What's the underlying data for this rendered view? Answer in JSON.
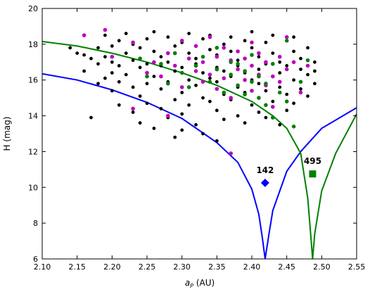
{
  "chart_data": {
    "type": "scatter",
    "xlabel": "a",
    "xlabel_sub": "P",
    "xlabel_unit": " (AU)",
    "ylabel": "H (mag)",
    "xlim": [
      2.1,
      2.55
    ],
    "ylim": [
      6,
      20
    ],
    "x_ticks": [
      "2.10",
      "2.15",
      "2.20",
      "2.25",
      "2.30",
      "2.35",
      "2.40",
      "2.45",
      "2.50",
      "2.55"
    ],
    "y_ticks": [
      "6",
      "8",
      "10",
      "12",
      "14",
      "16",
      "18",
      "20"
    ],
    "grid": false,
    "legend": "none",
    "colors": {
      "black_points": "#000000",
      "magenta_points": "#bf00bf",
      "green_points": "#008000",
      "blue_curve": "#0000ff",
      "green_curve": "#008000"
    },
    "curves": [
      {
        "color": "blue",
        "center": 2.419,
        "points": [
          [
            2.1,
            16.35
          ],
          [
            2.15,
            16.0
          ],
          [
            2.2,
            15.45
          ],
          [
            2.25,
            14.75
          ],
          [
            2.3,
            13.85
          ],
          [
            2.35,
            12.5
          ],
          [
            2.38,
            11.4
          ],
          [
            2.4,
            9.9
          ],
          [
            2.41,
            8.5
          ],
          [
            2.415,
            7.2
          ],
          [
            2.419,
            6.0
          ],
          [
            2.425,
            7.5
          ],
          [
            2.43,
            8.7
          ],
          [
            2.45,
            10.9
          ],
          [
            2.47,
            12.0
          ],
          [
            2.5,
            13.3
          ],
          [
            2.55,
            14.45
          ]
        ]
      },
      {
        "color": "green",
        "center": 2.487,
        "points": [
          [
            2.1,
            18.15
          ],
          [
            2.15,
            17.9
          ],
          [
            2.2,
            17.5
          ],
          [
            2.25,
            17.0
          ],
          [
            2.3,
            16.4
          ],
          [
            2.35,
            15.7
          ],
          [
            2.4,
            14.8
          ],
          [
            2.43,
            14.0
          ],
          [
            2.45,
            13.3
          ],
          [
            2.47,
            11.9
          ],
          [
            2.48,
            9.4
          ],
          [
            2.484,
            7.5
          ],
          [
            2.487,
            6.0
          ],
          [
            2.49,
            7.4
          ],
          [
            2.5,
            9.8
          ],
          [
            2.52,
            11.9
          ],
          [
            2.55,
            14.1
          ]
        ]
      }
    ],
    "markers": [
      {
        "label": "142",
        "shape": "diamond",
        "color": "blue",
        "x": 2.419,
        "y": 10.25
      },
      {
        "label": "495",
        "shape": "square",
        "color": "green",
        "x": 2.487,
        "y": 10.75
      }
    ],
    "series": [
      {
        "color": "black",
        "points": [
          [
            2.14,
            17.8
          ],
          [
            2.15,
            17.5
          ],
          [
            2.16,
            17.4
          ],
          [
            2.16,
            16.5
          ],
          [
            2.17,
            17.2
          ],
          [
            2.17,
            13.9
          ],
          [
            2.18,
            17.8
          ],
          [
            2.18,
            16.9
          ],
          [
            2.18,
            15.8
          ],
          [
            2.19,
            17.3
          ],
          [
            2.19,
            16.1
          ],
          [
            2.19,
            18.5
          ],
          [
            2.2,
            17.0
          ],
          [
            2.2,
            16.4
          ],
          [
            2.2,
            15.4
          ],
          [
            2.2,
            17.9
          ],
          [
            2.21,
            18.2
          ],
          [
            2.21,
            16.8
          ],
          [
            2.21,
            15.9
          ],
          [
            2.21,
            14.6
          ],
          [
            2.22,
            17.5
          ],
          [
            2.22,
            16.3
          ],
          [
            2.22,
            18.6
          ],
          [
            2.23,
            17.1
          ],
          [
            2.23,
            15.6
          ],
          [
            2.23,
            14.2
          ],
          [
            2.23,
            18.0
          ],
          [
            2.24,
            16.7
          ],
          [
            2.24,
            17.8
          ],
          [
            2.24,
            15.1
          ],
          [
            2.24,
            13.6
          ],
          [
            2.25,
            18.3
          ],
          [
            2.25,
            16.9
          ],
          [
            2.25,
            15.8
          ],
          [
            2.25,
            14.7
          ],
          [
            2.26,
            17.6
          ],
          [
            2.26,
            16.2
          ],
          [
            2.26,
            13.3
          ],
          [
            2.26,
            18.7
          ],
          [
            2.27,
            17.3
          ],
          [
            2.27,
            15.5
          ],
          [
            2.27,
            14.4
          ],
          [
            2.27,
            16.8
          ],
          [
            2.28,
            18.4
          ],
          [
            2.28,
            17.0
          ],
          [
            2.28,
            15.9
          ],
          [
            2.28,
            13.9
          ],
          [
            2.29,
            16.5
          ],
          [
            2.29,
            17.9
          ],
          [
            2.29,
            14.9
          ],
          [
            2.29,
            12.8
          ],
          [
            2.3,
            18.1
          ],
          [
            2.3,
            16.7
          ],
          [
            2.3,
            15.3
          ],
          [
            2.3,
            14.1
          ],
          [
            2.3,
            13.2
          ],
          [
            2.31,
            17.5
          ],
          [
            2.31,
            16.0
          ],
          [
            2.31,
            18.6
          ],
          [
            2.31,
            14.6
          ],
          [
            2.32,
            17.2
          ],
          [
            2.32,
            15.7
          ],
          [
            2.32,
            13.5
          ],
          [
            2.32,
            16.9
          ],
          [
            2.33,
            18.3
          ],
          [
            2.33,
            16.4
          ],
          [
            2.33,
            15.0
          ],
          [
            2.33,
            13.0
          ],
          [
            2.34,
            17.7
          ],
          [
            2.34,
            16.1
          ],
          [
            2.34,
            14.8
          ],
          [
            2.34,
            18.5
          ],
          [
            2.35,
            17.4
          ],
          [
            2.35,
            15.9
          ],
          [
            2.35,
            14.3
          ],
          [
            2.35,
            16.7
          ],
          [
            2.35,
            12.6
          ],
          [
            2.36,
            18.0
          ],
          [
            2.36,
            16.5
          ],
          [
            2.36,
            15.2
          ],
          [
            2.36,
            13.8
          ],
          [
            2.37,
            17.6
          ],
          [
            2.37,
            16.2
          ],
          [
            2.37,
            14.9
          ],
          [
            2.37,
            18.4
          ],
          [
            2.38,
            17.1
          ],
          [
            2.38,
            15.6
          ],
          [
            2.38,
            14.0
          ],
          [
            2.38,
            16.8
          ],
          [
            2.39,
            18.2
          ],
          [
            2.39,
            16.4
          ],
          [
            2.39,
            15.3
          ],
          [
            2.39,
            13.6
          ],
          [
            2.4,
            17.8
          ],
          [
            2.4,
            16.0
          ],
          [
            2.4,
            14.6
          ],
          [
            2.4,
            18.7
          ],
          [
            2.41,
            17.3
          ],
          [
            2.41,
            15.8
          ],
          [
            2.41,
            14.2
          ],
          [
            2.41,
            16.6
          ],
          [
            2.42,
            18.1
          ],
          [
            2.42,
            16.9
          ],
          [
            2.42,
            15.4
          ],
          [
            2.42,
            13.9
          ],
          [
            2.43,
            17.5
          ],
          [
            2.43,
            16.2
          ],
          [
            2.43,
            14.8
          ],
          [
            2.43,
            18.5
          ],
          [
            2.44,
            17.0
          ],
          [
            2.44,
            15.6
          ],
          [
            2.44,
            13.5
          ],
          [
            2.44,
            16.4
          ],
          [
            2.45,
            18.2
          ],
          [
            2.45,
            16.8
          ],
          [
            2.45,
            15.2
          ],
          [
            2.45,
            14.3
          ],
          [
            2.46,
            17.6
          ],
          [
            2.46,
            16.0
          ],
          [
            2.46,
            14.7
          ],
          [
            2.46,
            18.4
          ],
          [
            2.47,
            17.2
          ],
          [
            2.47,
            15.5
          ],
          [
            2.47,
            16.6
          ],
          [
            2.48,
            17.8
          ],
          [
            2.48,
            16.3
          ],
          [
            2.48,
            15.1
          ],
          [
            2.49,
            17.0
          ],
          [
            2.49,
            16.5
          ],
          [
            2.49,
            15.8
          ]
        ]
      },
      {
        "color": "magenta",
        "points": [
          [
            2.16,
            18.5
          ],
          [
            2.19,
            18.8
          ],
          [
            2.2,
            17.3
          ],
          [
            2.23,
            18.1
          ],
          [
            2.23,
            14.4
          ],
          [
            2.25,
            16.4
          ],
          [
            2.26,
            17.0
          ],
          [
            2.27,
            16.2
          ],
          [
            2.28,
            17.5
          ],
          [
            2.28,
            14.0
          ],
          [
            2.29,
            16.8
          ],
          [
            2.3,
            18.2
          ],
          [
            2.3,
            15.6
          ],
          [
            2.31,
            17.2
          ],
          [
            2.32,
            16.5
          ],
          [
            2.32,
            17.9
          ],
          [
            2.33,
            15.9
          ],
          [
            2.33,
            17.0
          ],
          [
            2.34,
            16.3
          ],
          [
            2.34,
            18.4
          ],
          [
            2.35,
            17.3
          ],
          [
            2.35,
            15.5
          ],
          [
            2.35,
            16.6
          ],
          [
            2.36,
            17.8
          ],
          [
            2.36,
            16.1
          ],
          [
            2.37,
            17.1
          ],
          [
            2.37,
            15.0
          ],
          [
            2.37,
            11.9
          ],
          [
            2.38,
            16.6
          ],
          [
            2.38,
            17.6
          ],
          [
            2.39,
            16.0
          ],
          [
            2.39,
            17.2
          ],
          [
            2.4,
            15.4
          ],
          [
            2.4,
            16.8
          ],
          [
            2.4,
            18.1
          ],
          [
            2.41,
            16.3
          ],
          [
            2.41,
            17.5
          ],
          [
            2.42,
            15.7
          ],
          [
            2.42,
            17.0
          ],
          [
            2.43,
            16.2
          ],
          [
            2.43,
            14.5
          ],
          [
            2.44,
            17.3
          ],
          [
            2.44,
            15.9
          ],
          [
            2.45,
            16.6
          ],
          [
            2.45,
            18.4
          ],
          [
            2.46,
            17.0
          ],
          [
            2.47,
            15.3
          ],
          [
            2.48,
            16.8
          ]
        ]
      },
      {
        "color": "green",
        "points": [
          [
            2.24,
            17.2
          ],
          [
            2.25,
            16.2
          ],
          [
            2.27,
            16.9
          ],
          [
            2.28,
            15.8
          ],
          [
            2.29,
            17.5
          ],
          [
            2.3,
            16.4
          ],
          [
            2.31,
            15.6
          ],
          [
            2.32,
            16.8
          ],
          [
            2.33,
            17.3
          ],
          [
            2.34,
            15.9
          ],
          [
            2.35,
            16.6
          ],
          [
            2.35,
            17.8
          ],
          [
            2.36,
            15.3
          ],
          [
            2.37,
            16.3
          ],
          [
            2.37,
            17.0
          ],
          [
            2.38,
            15.7
          ],
          [
            2.38,
            16.9
          ],
          [
            2.39,
            15.2
          ],
          [
            2.39,
            16.5
          ],
          [
            2.4,
            15.9
          ],
          [
            2.4,
            17.4
          ],
          [
            2.41,
            15.0
          ],
          [
            2.41,
            16.2
          ],
          [
            2.42,
            14.6
          ],
          [
            2.42,
            15.8
          ],
          [
            2.43,
            16.9
          ],
          [
            2.43,
            13.9
          ],
          [
            2.44,
            15.3
          ],
          [
            2.45,
            18.2
          ],
          [
            2.45,
            14.8
          ],
          [
            2.46,
            13.4
          ],
          [
            2.47,
            15.9
          ],
          [
            2.48,
            17.1
          ]
        ]
      }
    ]
  }
}
